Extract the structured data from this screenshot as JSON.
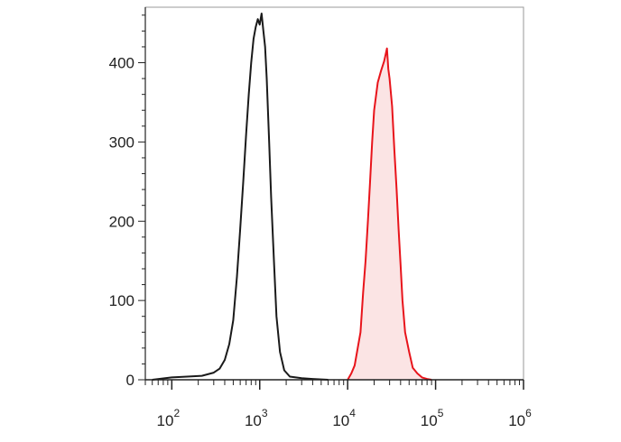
{
  "chart_data": {
    "type": "area",
    "title": "",
    "xlabel": "",
    "ylabel": "",
    "x_scale": "log",
    "xlim": [
      50,
      1000000
    ],
    "ylim": [
      0,
      470
    ],
    "y_ticks": [
      0,
      100,
      200,
      300,
      400
    ],
    "y_tick_labels": [
      "0",
      "100",
      "200",
      "300",
      "400"
    ],
    "x_ticks": [
      {
        "value": 100,
        "base": "10",
        "exp": "2"
      },
      {
        "value": 1000,
        "base": "10",
        "exp": "3"
      },
      {
        "value": 10000,
        "base": "10",
        "exp": "4"
      },
      {
        "value": 100000,
        "base": "10",
        "exp": "5"
      },
      {
        "value": 1000000,
        "base": "10",
        "exp": "6"
      }
    ],
    "grid": false,
    "legend": "none",
    "series": [
      {
        "color": "#1a1a1a",
        "fill": "none",
        "points": [
          [
            60,
            0
          ],
          [
            100,
            3
          ],
          [
            150,
            4
          ],
          [
            220,
            5
          ],
          [
            300,
            9
          ],
          [
            350,
            14
          ],
          [
            400,
            25
          ],
          [
            450,
            45
          ],
          [
            500,
            75
          ],
          [
            550,
            130
          ],
          [
            600,
            190
          ],
          [
            650,
            250
          ],
          [
            700,
            310
          ],
          [
            750,
            360
          ],
          [
            800,
            400
          ],
          [
            850,
            430
          ],
          [
            900,
            445
          ],
          [
            950,
            455
          ],
          [
            1000,
            448
          ],
          [
            1050,
            462
          ],
          [
            1100,
            440
          ],
          [
            1150,
            420
          ],
          [
            1200,
            380
          ],
          [
            1280,
            300
          ],
          [
            1350,
            230
          ],
          [
            1450,
            150
          ],
          [
            1550,
            80
          ],
          [
            1700,
            35
          ],
          [
            1900,
            12
          ],
          [
            2200,
            4
          ],
          [
            3000,
            2
          ],
          [
            4000,
            1
          ],
          [
            6000,
            0
          ]
        ]
      },
      {
        "color": "#e8141b",
        "fill": "#fbe4e4",
        "points": [
          [
            10000,
            0
          ],
          [
            11000,
            8
          ],
          [
            12000,
            18
          ],
          [
            13000,
            40
          ],
          [
            14000,
            60
          ],
          [
            15000,
            110
          ],
          [
            16000,
            150
          ],
          [
            17000,
            200
          ],
          [
            18000,
            250
          ],
          [
            19000,
            300
          ],
          [
            20000,
            340
          ],
          [
            22000,
            375
          ],
          [
            24000,
            390
          ],
          [
            26000,
            402
          ],
          [
            28000,
            418
          ],
          [
            29000,
            392
          ],
          [
            30000,
            380
          ],
          [
            32000,
            345
          ],
          [
            34000,
            290
          ],
          [
            36000,
            240
          ],
          [
            38000,
            190
          ],
          [
            40000,
            145
          ],
          [
            42000,
            100
          ],
          [
            45000,
            60
          ],
          [
            50000,
            35
          ],
          [
            55000,
            15
          ],
          [
            62000,
            8
          ],
          [
            70000,
            3
          ],
          [
            80000,
            1
          ],
          [
            90000,
            0
          ]
        ]
      }
    ]
  }
}
